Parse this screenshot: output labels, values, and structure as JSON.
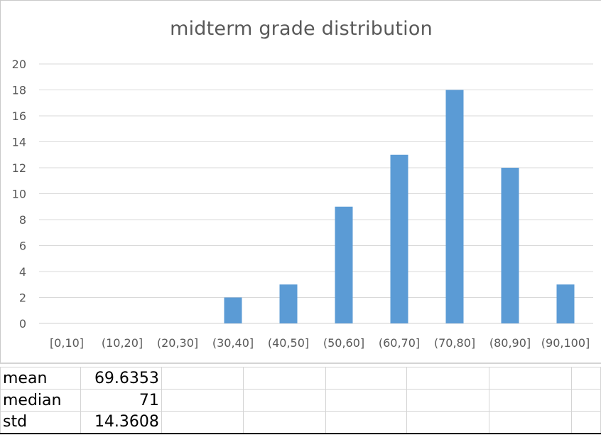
{
  "chart_data": {
    "type": "bar",
    "title": "midterm grade distribution",
    "categories": [
      "[0,10]",
      "(10,20]",
      "(20,30]",
      "(30,40]",
      "(40,50]",
      "(50,60]",
      "(60,70]",
      "(70,80]",
      "(80,90]",
      "(90,100]"
    ],
    "values": [
      0,
      0,
      0,
      2,
      3,
      9,
      13,
      18,
      12,
      3
    ],
    "ylim": [
      0,
      20
    ],
    "yticks": [
      0,
      2,
      4,
      6,
      8,
      10,
      12,
      14,
      16,
      18,
      20
    ],
    "xlabel": "",
    "ylabel": "",
    "grid": true,
    "bar_color": "#5b9bd5",
    "grid_color": "#d9d9d9",
    "text_color": "#595959"
  },
  "stats_table": {
    "rows": [
      {
        "label": "mean",
        "value": "69.6353"
      },
      {
        "label": "median",
        "value": "71"
      },
      {
        "label": "std",
        "value": "14.3608"
      }
    ]
  }
}
